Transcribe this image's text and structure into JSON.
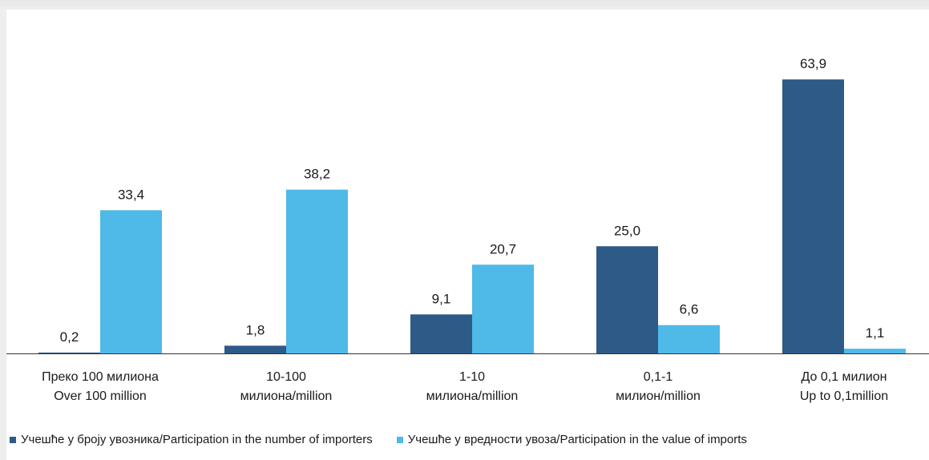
{
  "chart_data": {
    "type": "bar",
    "categories": [
      [
        "Преко  100 милиона",
        "Over  100 million"
      ],
      [
        "10-100",
        "милиона/million"
      ],
      [
        "1-10",
        "милиона/million"
      ],
      [
        "0,1-1",
        "милион/million"
      ],
      [
        "До 0,1 милион",
        "Up to 0,1million"
      ]
    ],
    "series": [
      {
        "name": "Учешће у броју увозника/Participation  in the number of importers",
        "color": "#2e5a88",
        "values": [
          0.2,
          1.8,
          9.1,
          25.0,
          63.9
        ],
        "labels": [
          "0,2",
          "1,8",
          "9,1",
          "25,0",
          "63,9"
        ]
      },
      {
        "name": "Учешће у вредности увоза/Participation  in the value of imports",
        "color": "#4fb9e8",
        "values": [
          33.4,
          38.2,
          20.7,
          6.6,
          1.1
        ],
        "labels": [
          "33,4",
          "38,2",
          "20,7",
          "6,6",
          "1,1"
        ]
      }
    ],
    "ylim": [
      0,
      70
    ],
    "grid": false,
    "legend_position": "bottom"
  }
}
